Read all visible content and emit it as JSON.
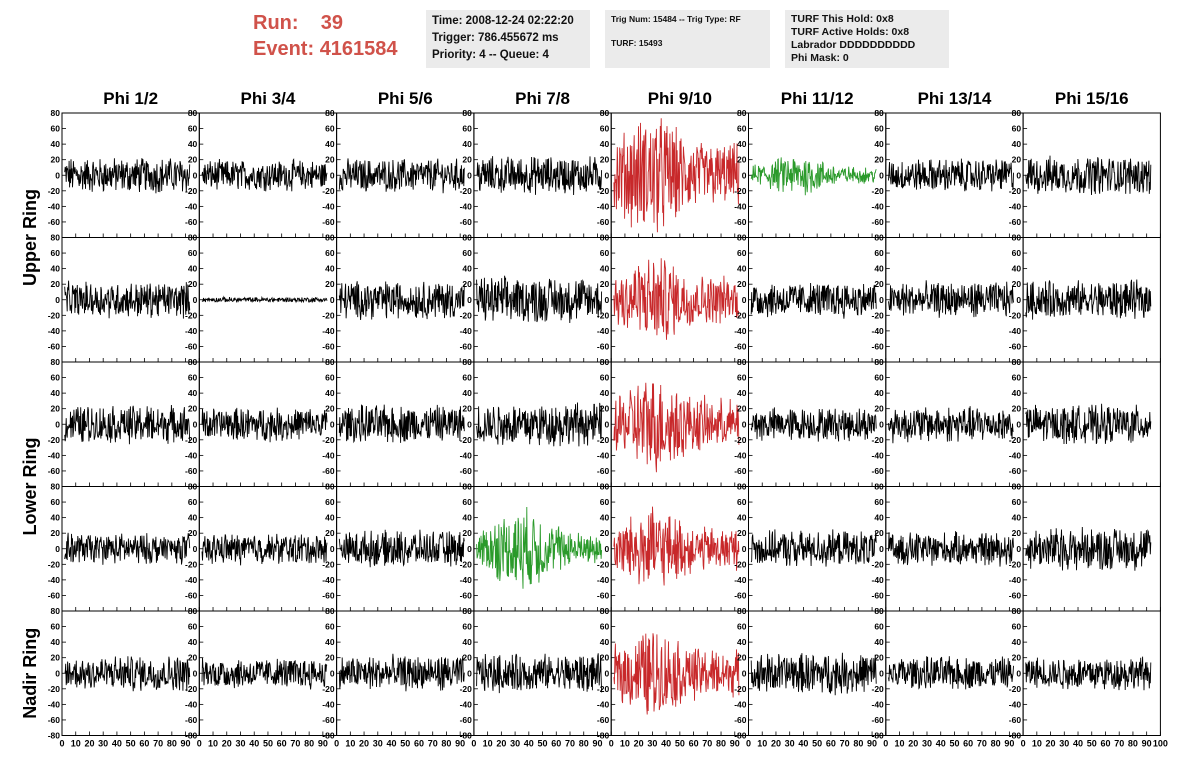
{
  "header": {
    "run_label": "Run:",
    "run_value": "39",
    "event_label": "Event:",
    "event_value": "4161584",
    "time_box": [
      "Time: 2008-12-24 02:22:20",
      "Trigger: 786.455672 ms",
      "Priority: 4 -- Queue: 4"
    ],
    "trig_box": [
      "Trig Num: 15484 -- Trig Type: RF",
      "",
      "TURF: 15493"
    ],
    "turf_box": [
      "TURF This Hold: 0x8",
      "TURF Active Holds: 0x8",
      "Labrador DDDDDDDDDD",
      "Phi Mask: 0"
    ]
  },
  "colors": {
    "header_text": "#d0524a",
    "trace_default": "#000000",
    "trace_red": "#c8282a",
    "trace_green": "#2a9a2a",
    "info_bg": "#ebebeb"
  },
  "chart_data": {
    "type": "line",
    "layout": "8x5 panel grid of waveforms",
    "column_titles": [
      "Phi 1/2",
      "Phi 3/4",
      "Phi 5/6",
      "Phi 7/8",
      "Phi 9/10",
      "Phi 11/12",
      "Phi 13/14",
      "Phi 15/16"
    ],
    "row_labels": [
      {
        "label": "Upper Ring",
        "rows": [
          0,
          1
        ]
      },
      {
        "label": "Lower Ring",
        "rows": [
          2,
          3
        ]
      },
      {
        "label": "Nadir Ring",
        "rows": [
          4
        ]
      }
    ],
    "xlim": [
      0,
      100
    ],
    "ylim": [
      -80,
      80
    ],
    "y_ticks": [
      -80,
      -60,
      -40,
      -20,
      0,
      20,
      40,
      60,
      80
    ],
    "x_ticks": [
      0,
      10,
      20,
      30,
      40,
      50,
      60,
      70,
      80,
      90,
      100
    ],
    "x_tick_labels": [
      "0",
      "10",
      "20",
      "30",
      "40",
      "50",
      "60",
      "70",
      "80",
      "90",
      "100"
    ],
    "panels": [
      [
        {
          "color": "black",
          "amp": 14
        },
        {
          "color": "black",
          "amp": 12
        },
        {
          "color": "black",
          "amp": 13
        },
        {
          "color": "black",
          "amp": 15
        },
        {
          "color": "red",
          "amp": 30
        },
        {
          "color": "green",
          "amp": 12
        },
        {
          "color": "black",
          "amp": 13
        },
        {
          "color": "black",
          "amp": 15
        }
      ],
      [
        {
          "color": "black",
          "amp": 14
        },
        {
          "color": "black",
          "amp": 2
        },
        {
          "color": "black",
          "amp": 15
        },
        {
          "color": "black",
          "amp": 18
        },
        {
          "color": "red",
          "amp": 22
        },
        {
          "color": "black",
          "amp": 14
        },
        {
          "color": "black",
          "amp": 14
        },
        {
          "color": "black",
          "amp": 15
        }
      ],
      [
        {
          "color": "black",
          "amp": 15
        },
        {
          "color": "black",
          "amp": 13
        },
        {
          "color": "black",
          "amp": 15
        },
        {
          "color": "black",
          "amp": 17
        },
        {
          "color": "red",
          "amp": 24
        },
        {
          "color": "black",
          "amp": 13
        },
        {
          "color": "black",
          "amp": 14
        },
        {
          "color": "black",
          "amp": 15
        }
      ],
      [
        {
          "color": "black",
          "amp": 12
        },
        {
          "color": "black",
          "amp": 12
        },
        {
          "color": "black",
          "amp": 14
        },
        {
          "color": "green",
          "amp": 24
        },
        {
          "color": "red",
          "amp": 20
        },
        {
          "color": "black",
          "amp": 14
        },
        {
          "color": "black",
          "amp": 13
        },
        {
          "color": "black",
          "amp": 17
        }
      ],
      [
        {
          "color": "black",
          "amp": 14
        },
        {
          "color": "black",
          "amp": 12
        },
        {
          "color": "black",
          "amp": 14
        },
        {
          "color": "black",
          "amp": 15
        },
        {
          "color": "red",
          "amp": 22
        },
        {
          "color": "black",
          "amp": 16
        },
        {
          "color": "black",
          "amp": 13
        },
        {
          "color": "black",
          "amp": 13
        }
      ]
    ]
  }
}
